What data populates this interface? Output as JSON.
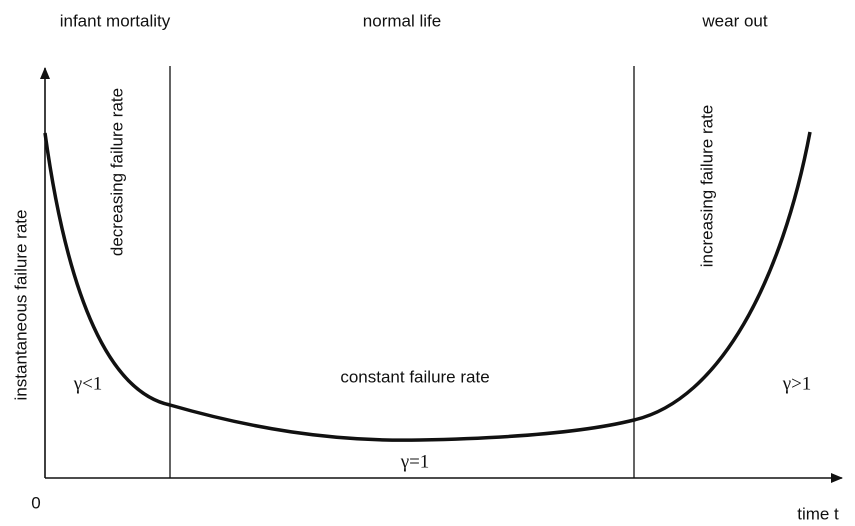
{
  "regions": [
    "infant mortality",
    "normal life",
    "wear out"
  ],
  "axes": {
    "y_label": "instantaneous failure rate",
    "x_label": "time t",
    "origin": "0"
  },
  "rates": {
    "decreasing": "decreasing failure rate",
    "constant": "constant failure rate",
    "increasing": "increasing failure rate"
  },
  "shape_labels": {
    "early": "γ<1",
    "middle": "γ=1",
    "late": "γ>1"
  }
}
